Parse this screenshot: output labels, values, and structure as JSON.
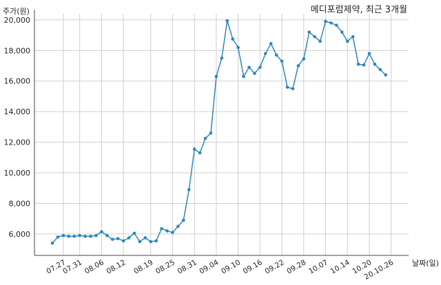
{
  "chart_data": {
    "type": "line",
    "title": "메디포럼제약, 최근 3개월",
    "ylabel": "주가(원)",
    "xlabel": "날짜(일)",
    "ylim": [
      4600,
      20400
    ],
    "yticks": [
      6000,
      8000,
      10000,
      12000,
      14000,
      16000,
      18000,
      20000
    ],
    "ytick_labels": [
      "6,000",
      "8,000",
      "10,000",
      "12,000",
      "14,000",
      "16,000",
      "18,000",
      "20,000"
    ],
    "xticks": [
      {
        "index": 2,
        "label": "07.27"
      },
      {
        "index": 5,
        "label": "07.31"
      },
      {
        "index": 9,
        "label": "08.06"
      },
      {
        "index": 13,
        "label": "08.12"
      },
      {
        "index": 18,
        "label": "08.19"
      },
      {
        "index": 22,
        "label": "08.25"
      },
      {
        "index": 26,
        "label": "08.31"
      },
      {
        "index": 30,
        "label": "09.04"
      },
      {
        "index": 34,
        "label": "09.10"
      },
      {
        "index": 38,
        "label": "09.16"
      },
      {
        "index": 42,
        "label": "09.22"
      },
      {
        "index": 46,
        "label": "09.28"
      },
      {
        "index": 50,
        "label": "10.07"
      },
      {
        "index": 54,
        "label": "10.14"
      },
      {
        "index": 58,
        "label": "10.20"
      },
      {
        "index": 62,
        "label": "20.10.26"
      }
    ],
    "grid": true,
    "color": "#2e86bd",
    "series": [
      {
        "values": [
          5400,
          5800,
          5900,
          5850,
          5850,
          5900,
          5850,
          5850,
          5900,
          6150,
          5900,
          5650,
          5700,
          5550,
          5750,
          6050,
          5500,
          5750,
          5500,
          5550,
          6350,
          6200,
          6100,
          6500,
          6900,
          8900,
          11550,
          11300,
          12250,
          12600,
          16300,
          17500,
          19950,
          18750,
          18200,
          16300,
          16900,
          16500,
          16900,
          17800,
          18450,
          17700,
          17300,
          15600,
          15500,
          17000,
          17450,
          19200,
          18900,
          18600,
          19900,
          19800,
          19650,
          19200,
          18600,
          18900,
          17100,
          17050,
          17800,
          17100,
          16750,
          16400
        ]
      }
    ]
  }
}
